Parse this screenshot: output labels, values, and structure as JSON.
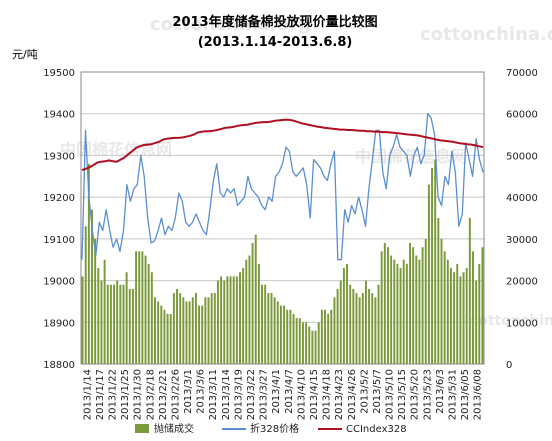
{
  "chart_data": {
    "type": "bar",
    "title": "2013年度储备棉投放现价量比较图",
    "subtitle": "(2013.1.14-2013.6.8)",
    "y_left_unit": "元/吨",
    "y_left_range": [
      18800,
      19500
    ],
    "y_left_ticks": [
      "19500",
      "19400",
      "19300",
      "19200",
      "19100",
      "19000",
      "18900",
      "18800"
    ],
    "y_right_range": [
      0,
      70000
    ],
    "y_right_ticks": [
      "70000",
      "60000",
      "50000",
      "40000",
      "30000",
      "20000",
      "10000",
      "0"
    ],
    "x_tick_labels": [
      "2013/1/14",
      "2013/1/17",
      "2013/1/22",
      "2013/1/25",
      "2013/1/30",
      "2013/2/18",
      "2013/2/21",
      "2013/2/26",
      "2013/3/1",
      "2013/3/6",
      "2013/3/11",
      "2013/3/14",
      "2013/3/19",
      "2013/3/22",
      "2013/3/27",
      "2013/4/1",
      "2013/4/7",
      "2013/4/10",
      "2013/4/15",
      "2013/4/18",
      "2013/4/23",
      "2013/4/26",
      "2013/5/2",
      "2013/5/7",
      "2013/5/10",
      "2013/5/15",
      "2013/5/20",
      "2013/5/23",
      "2013/6/3",
      "2013/5/31",
      "2013/6/05",
      "2013/6/08"
    ],
    "grid": true,
    "legend_position": "bottom",
    "series": [
      {
        "name": "抛储成交",
        "type": "bar",
        "axis": "right",
        "color": "#7a9a3a",
        "values": [
          21000,
          33000,
          48000,
          37000,
          30000,
          23000,
          20000,
          25000,
          19000,
          19000,
          19000,
          20000,
          19000,
          19000,
          22000,
          18000,
          18000,
          27000,
          27000,
          27000,
          26000,
          24000,
          22000,
          16000,
          15000,
          14000,
          13000,
          12000,
          12000,
          17000,
          18000,
          17000,
          16000,
          15000,
          15000,
          16000,
          17000,
          14000,
          14000,
          16000,
          16000,
          17000,
          17000,
          20000,
          21000,
          20000,
          21000,
          21000,
          21000,
          21000,
          22000,
          23000,
          25000,
          26000,
          29000,
          31000,
          24000,
          19000,
          19000,
          17000,
          17000,
          16000,
          15000,
          14000,
          14000,
          13000,
          13000,
          12000,
          11000,
          11000,
          10000,
          10000,
          9000,
          8000,
          8000,
          10000,
          13000,
          13000,
          12000,
          13000,
          16000,
          18000,
          20000,
          23000,
          24000,
          19000,
          18000,
          17000,
          16000,
          17000,
          20000,
          18000,
          17000,
          16000,
          19000,
          27000,
          29000,
          28000,
          26000,
          25000,
          24000,
          23000,
          25000,
          24000,
          29000,
          28000,
          26000,
          25000,
          28000,
          30000,
          43000,
          47000,
          49000,
          35000,
          30000,
          27000,
          25000,
          23000,
          22000,
          24000,
          21000,
          22000,
          23000,
          35000,
          27000,
          20000,
          24000,
          28000
        ]
      },
      {
        "name": "折328价格",
        "type": "line",
        "axis": "left",
        "color": "#5b8fd1",
        "values": [
          19050,
          19360,
          19200,
          19120,
          19060,
          19140,
          19120,
          19170,
          19120,
          19080,
          19100,
          19070,
          19120,
          19230,
          19190,
          19220,
          19230,
          19300,
          19250,
          19150,
          19090,
          19095,
          19120,
          19150,
          19110,
          19130,
          19120,
          19150,
          19210,
          19190,
          19140,
          19130,
          19140,
          19160,
          19140,
          19120,
          19110,
          19170,
          19240,
          19280,
          19210,
          19200,
          19220,
          19210,
          19220,
          19180,
          19190,
          19200,
          19250,
          19220,
          19210,
          19200,
          19180,
          19170,
          19200,
          19190,
          19250,
          19260,
          19280,
          19320,
          19310,
          19260,
          19250,
          19260,
          19270,
          19230,
          19150,
          19290,
          19280,
          19270,
          19250,
          19240,
          19280,
          19310,
          19050,
          19050,
          19170,
          19140,
          19180,
          19160,
          19200,
          19170,
          19130,
          19220,
          19290,
          19360,
          19360,
          19260,
          19220,
          19300,
          19320,
          19350,
          19320,
          19310,
          19300,
          19250,
          19300,
          19320,
          19280,
          19300,
          19400,
          19390,
          19350,
          19200,
          19180,
          19250,
          19230,
          19310,
          19260,
          19130,
          19160,
          19330,
          19290,
          19250,
          19340,
          19290,
          19260
        ]
      },
      {
        "name": "CCIndex328",
        "type": "line",
        "axis": "left",
        "color": "#b01020",
        "values": [
          19265,
          19268,
          19272,
          19277,
          19283,
          19285,
          19286,
          19288,
          19286,
          19285,
          19290,
          19295,
          19303,
          19310,
          19318,
          19322,
          19325,
          19326,
          19327,
          19330,
          19333,
          19338,
          19340,
          19341,
          19342,
          19342,
          19343,
          19345,
          19347,
          19350,
          19355,
          19357,
          19358,
          19358,
          19359,
          19361,
          19363,
          19366,
          19367,
          19368,
          19370,
          19372,
          19373,
          19374,
          19376,
          19378,
          19379,
          19380,
          19380,
          19381,
          19383,
          19384,
          19385,
          19386,
          19385,
          19383,
          19380,
          19377,
          19375,
          19373,
          19371,
          19369,
          19368,
          19366,
          19365,
          19364,
          19363,
          19362,
          19362,
          19361,
          19361,
          19360,
          19359,
          19359,
          19358,
          19358,
          19357,
          19357,
          19356,
          19356,
          19355,
          19354,
          19353,
          19352,
          19351,
          19350,
          19349,
          19348,
          19346,
          19344,
          19342,
          19340,
          19338,
          19336,
          19335,
          19334,
          19333,
          19331,
          19329,
          19328,
          19327,
          19326,
          19324,
          19322,
          19320
        ]
      }
    ]
  },
  "watermarks": [
    "cottonchina.org",
    "中国棉花信息网",
    "cottonchina.org"
  ]
}
